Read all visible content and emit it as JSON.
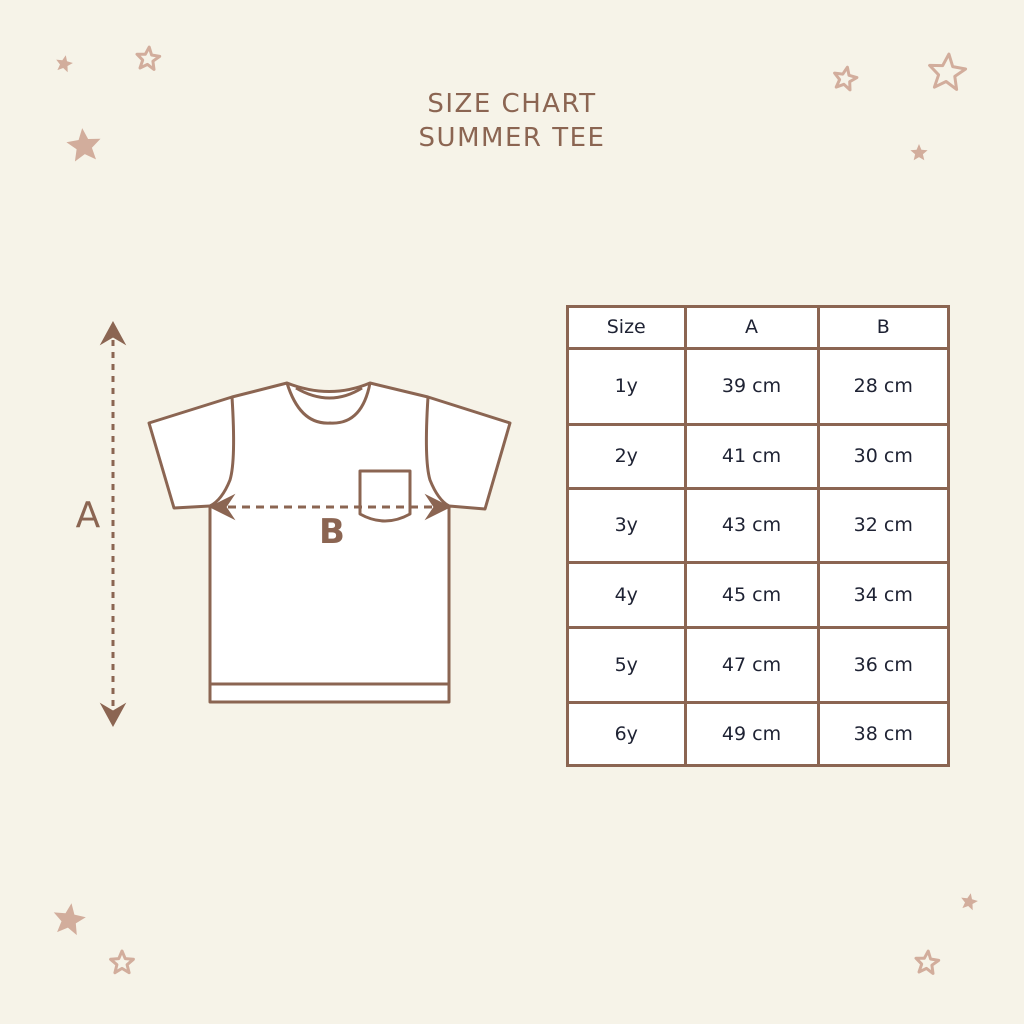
{
  "title": {
    "line1": "SIZE CHART",
    "line2": "SUMMER TEE"
  },
  "diagram": {
    "label_a": "A",
    "label_b": "B"
  },
  "colors": {
    "background": "#f6f3e8",
    "accent": "#8b6552",
    "star": "#d2ad9c",
    "text": "#1e2233"
  },
  "table": {
    "headers": [
      "Size",
      "A",
      "B"
    ],
    "rows": [
      [
        "1y",
        "39 cm",
        "28 cm"
      ],
      [
        "2y",
        "41 cm",
        "30 cm"
      ],
      [
        "3y",
        "43 cm",
        "32 cm"
      ],
      [
        "4y",
        "45 cm",
        "34 cm"
      ],
      [
        "5y",
        "47 cm",
        "36 cm"
      ],
      [
        "6y",
        "49 cm",
        "38 cm"
      ]
    ]
  },
  "icons": [
    "star-icon",
    "outline-star-icon",
    "tshirt-icon"
  ]
}
